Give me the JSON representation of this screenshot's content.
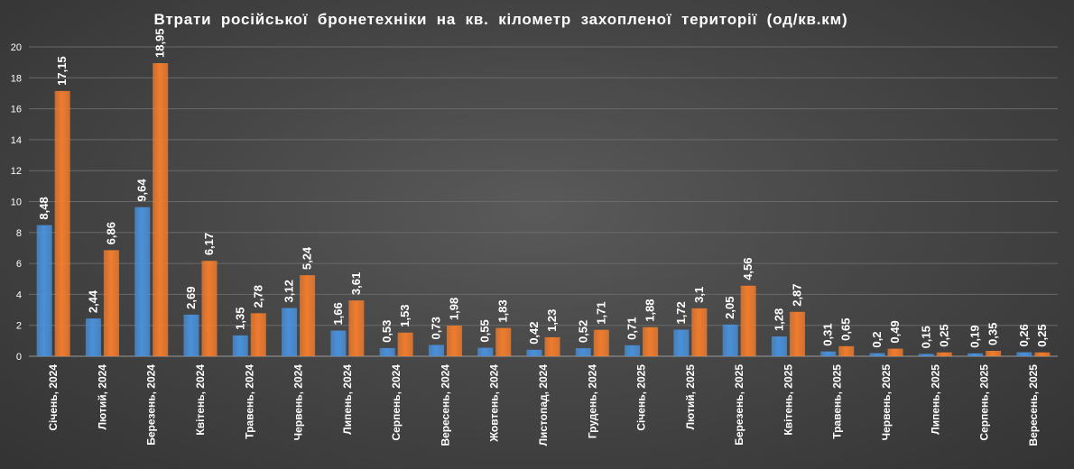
{
  "chart_data": {
    "type": "bar",
    "title": "Втрати російської бронетехніки на кв. кілометр захопленої території (од/кв.км)",
    "categories": [
      "Січень, 2024",
      "Лютий, 2024",
      "Березень, 2024",
      "Квітень, 2024",
      "Травень, 2024",
      "Червень, 2024",
      "Липень, 2024",
      "Серпень, 2024",
      "Вересень, 2024",
      "Жовтень, 2024",
      "Листопад, 2024",
      "Грудень, 2024",
      "Січень, 2025",
      "Лютий, 2025",
      "Березень, 2025",
      "Квітень, 2025",
      "Травень, 2025",
      "Червень, 2025",
      "Липень, 2025",
      "Серпень, 2025",
      "Вересень, 2025"
    ],
    "series": [
      {
        "values": [
          8.48,
          2.44,
          9.64,
          2.69,
          1.35,
          3.12,
          1.66,
          0.53,
          0.73,
          0.55,
          0.42,
          0.52,
          0.71,
          1.72,
          2.05,
          1.28,
          0.31,
          0.2,
          0.15,
          0.19,
          0.26
        ],
        "labels": [
          "8,48",
          "2,44",
          "9,64",
          "2,69",
          "1,35",
          "3,12",
          "1,66",
          "0,53",
          "0,73",
          "0,55",
          "0,42",
          "0,52",
          "0,71",
          "1,72",
          "2,05",
          "1,28",
          "0,31",
          "0,2",
          "0,15",
          "0,19",
          "0,26"
        ],
        "color": "#4a90d9"
      },
      {
        "values": [
          17.15,
          6.86,
          18.95,
          6.17,
          2.78,
          5.24,
          3.61,
          1.53,
          1.98,
          1.83,
          1.23,
          1.71,
          1.88,
          3.1,
          4.56,
          2.87,
          0.65,
          0.49,
          0.25,
          0.35,
          0.25
        ],
        "labels": [
          "17,15",
          "6,86",
          "18,95",
          "6,17",
          "2,78",
          "5,24",
          "3,61",
          "1,53",
          "1,98",
          "1,83",
          "1,23",
          "1,71",
          "1,88",
          "3,1",
          "4,56",
          "2,87",
          "0,65",
          "0,49",
          "0,25",
          "0,35",
          "0,25"
        ],
        "color": "#f07c2e"
      }
    ],
    "ylim": [
      0,
      20
    ],
    "yticks": [
      0,
      2,
      4,
      6,
      8,
      10,
      12,
      14,
      16,
      18,
      20
    ],
    "xlabel": "",
    "ylabel": "",
    "grid": true,
    "legend": "none"
  }
}
